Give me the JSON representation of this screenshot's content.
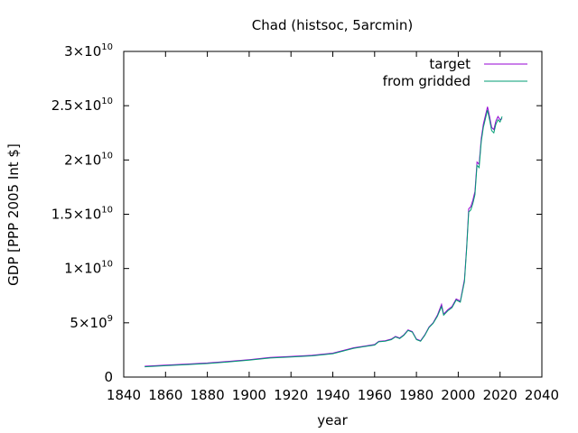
{
  "chart_data": {
    "type": "line",
    "title": "Chad (histsoc, 5arcmin)",
    "xlabel": "year",
    "ylabel": "GDP [PPP 2005 Int $]",
    "xlim": [
      1840,
      2040
    ],
    "ylim": [
      0,
      30000000000
    ],
    "x_ticks": [
      "1840",
      "1860",
      "1880",
      "1900",
      "1920",
      "1940",
      "1960",
      "1980",
      "2000",
      "2020",
      "2040"
    ],
    "y_ticks": [
      {
        "value": 0,
        "mantissa": "0",
        "exponent": ""
      },
      {
        "value": 5000000000,
        "mantissa": "5×10",
        "exponent": "9"
      },
      {
        "value": 10000000000,
        "mantissa": "1×10",
        "exponent": "10"
      },
      {
        "value": 15000000000,
        "mantissa": "1.5×10",
        "exponent": "10"
      },
      {
        "value": 20000000000,
        "mantissa": "2×10",
        "exponent": "10"
      },
      {
        "value": 25000000000,
        "mantissa": "2.5×10",
        "exponent": "10"
      },
      {
        "value": 30000000000,
        "mantissa": "3×10",
        "exponent": "10"
      }
    ],
    "grid": false,
    "legend_position": "top-right",
    "series": [
      {
        "name": "target",
        "color": "#9400d3",
        "points": [
          [
            1850,
            1000000000
          ],
          [
            1860,
            1100000000
          ],
          [
            1870,
            1200000000
          ],
          [
            1880,
            1300000000
          ],
          [
            1890,
            1450000000
          ],
          [
            1900,
            1600000000
          ],
          [
            1910,
            1800000000
          ],
          [
            1920,
            1900000000
          ],
          [
            1930,
            2000000000
          ],
          [
            1940,
            2200000000
          ],
          [
            1945,
            2450000000
          ],
          [
            1950,
            2700000000
          ],
          [
            1955,
            2850000000
          ],
          [
            1960,
            3000000000
          ],
          [
            1962,
            3300000000
          ],
          [
            1965,
            3350000000
          ],
          [
            1968,
            3500000000
          ],
          [
            1970,
            3750000000
          ],
          [
            1972,
            3600000000
          ],
          [
            1974,
            3900000000
          ],
          [
            1976,
            4350000000
          ],
          [
            1978,
            4200000000
          ],
          [
            1980,
            3500000000
          ],
          [
            1982,
            3350000000
          ],
          [
            1984,
            3900000000
          ],
          [
            1986,
            4600000000
          ],
          [
            1988,
            5000000000
          ],
          [
            1990,
            5700000000
          ],
          [
            1992,
            6700000000
          ],
          [
            1993,
            5800000000
          ],
          [
            1995,
            6200000000
          ],
          [
            1997,
            6500000000
          ],
          [
            1999,
            7200000000
          ],
          [
            2001,
            7000000000
          ],
          [
            2003,
            9000000000
          ],
          [
            2004,
            12000000000
          ],
          [
            2005,
            15500000000
          ],
          [
            2006,
            15700000000
          ],
          [
            2007,
            16300000000
          ],
          [
            2008,
            17100000000
          ],
          [
            2009,
            19800000000
          ],
          [
            2010,
            19600000000
          ],
          [
            2011,
            22000000000
          ],
          [
            2012,
            23300000000
          ],
          [
            2013,
            24100000000
          ],
          [
            2014,
            24900000000
          ],
          [
            2015,
            24000000000
          ],
          [
            2016,
            23000000000
          ],
          [
            2017,
            22800000000
          ],
          [
            2018,
            23600000000
          ],
          [
            2019,
            24000000000
          ],
          [
            2020,
            23700000000
          ],
          [
            2021,
            23800000000
          ]
        ]
      },
      {
        "name": "from gridded",
        "color": "#009e73",
        "points": [
          [
            1850,
            950000000
          ],
          [
            1860,
            1050000000
          ],
          [
            1870,
            1150000000
          ],
          [
            1880,
            1250000000
          ],
          [
            1890,
            1400000000
          ],
          [
            1900,
            1550000000
          ],
          [
            1910,
            1750000000
          ],
          [
            1920,
            1850000000
          ],
          [
            1930,
            1950000000
          ],
          [
            1940,
            2150000000
          ],
          [
            1945,
            2400000000
          ],
          [
            1950,
            2650000000
          ],
          [
            1955,
            2800000000
          ],
          [
            1960,
            2950000000
          ],
          [
            1962,
            3250000000
          ],
          [
            1965,
            3300000000
          ],
          [
            1968,
            3450000000
          ],
          [
            1970,
            3700000000
          ],
          [
            1972,
            3550000000
          ],
          [
            1974,
            3850000000
          ],
          [
            1976,
            4300000000
          ],
          [
            1978,
            4150000000
          ],
          [
            1980,
            3450000000
          ],
          [
            1982,
            3300000000
          ],
          [
            1984,
            3850000000
          ],
          [
            1986,
            4550000000
          ],
          [
            1988,
            4950000000
          ],
          [
            1990,
            5600000000
          ],
          [
            1992,
            6500000000
          ],
          [
            1993,
            5700000000
          ],
          [
            1995,
            6100000000
          ],
          [
            1997,
            6400000000
          ],
          [
            1999,
            7100000000
          ],
          [
            2001,
            6900000000
          ],
          [
            2003,
            8800000000
          ],
          [
            2004,
            11800000000
          ],
          [
            2005,
            15200000000
          ],
          [
            2006,
            15400000000
          ],
          [
            2007,
            16000000000
          ],
          [
            2008,
            16800000000
          ],
          [
            2009,
            19500000000
          ],
          [
            2010,
            19300000000
          ],
          [
            2011,
            21700000000
          ],
          [
            2012,
            23000000000
          ],
          [
            2013,
            23800000000
          ],
          [
            2014,
            24600000000
          ],
          [
            2015,
            23700000000
          ],
          [
            2016,
            22700000000
          ],
          [
            2017,
            22500000000
          ],
          [
            2018,
            23300000000
          ],
          [
            2019,
            23700000000
          ],
          [
            2020,
            23500000000
          ],
          [
            2021,
            24000000000
          ]
        ]
      }
    ]
  }
}
